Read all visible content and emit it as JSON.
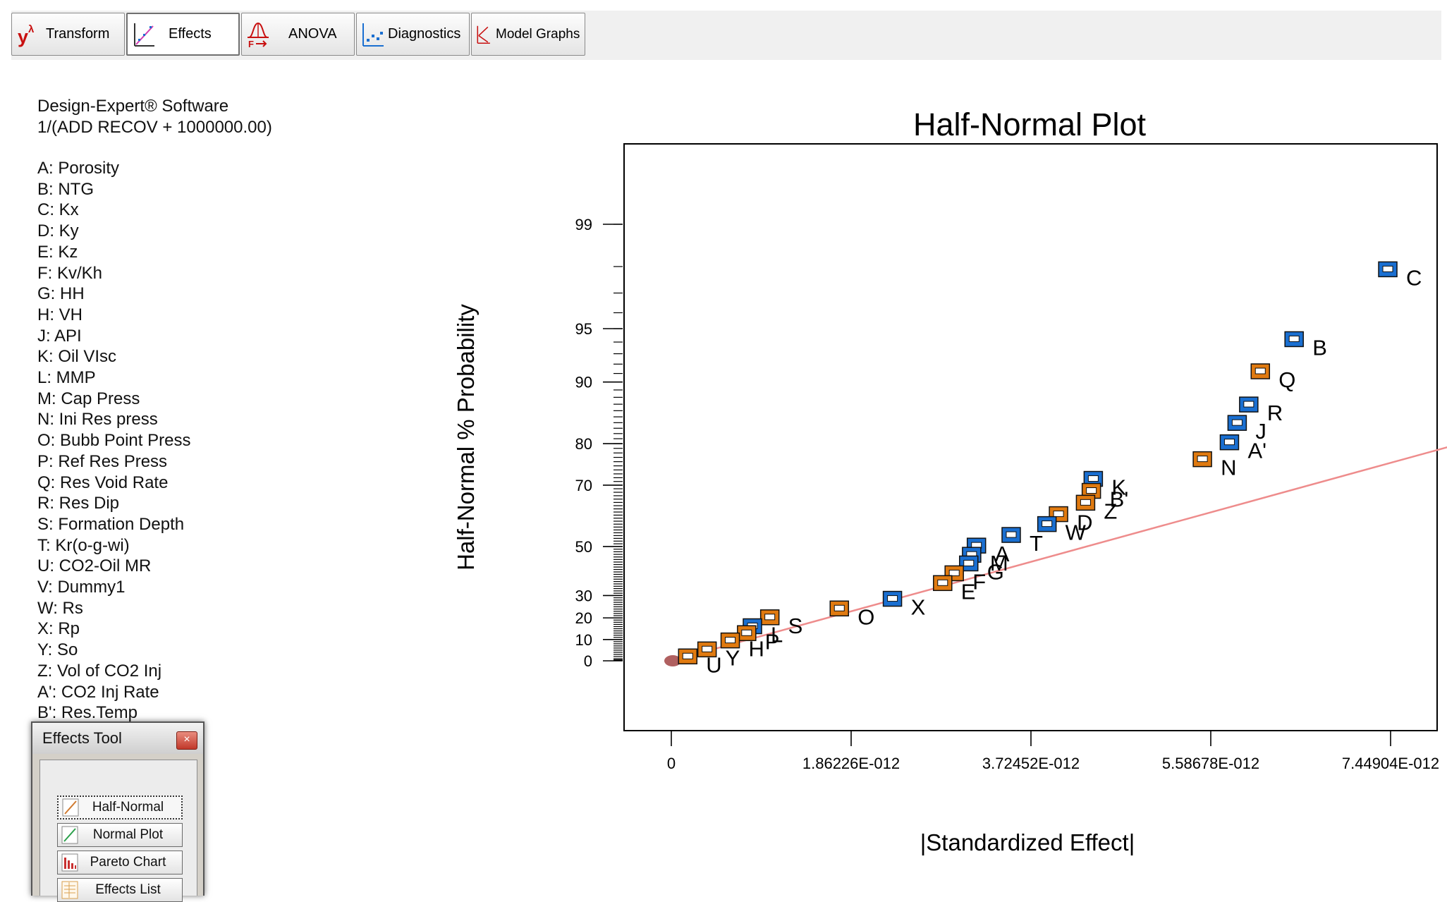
{
  "toolbar": {
    "buttons": [
      {
        "label": "Transform",
        "icon": "y-lambda-icon"
      },
      {
        "label": "Effects",
        "icon": "effects-scatter-icon"
      },
      {
        "label": "ANOVA",
        "icon": "anova-f-icon"
      },
      {
        "label": "Diagnostics",
        "icon": "diagnostics-scatter-icon"
      },
      {
        "label": "Model Graphs",
        "icon": "model-graphs-icon"
      }
    ],
    "transform_glyph": "y",
    "transform_sup": "λ",
    "anova_sub": "F",
    "active": "Effects"
  },
  "info": {
    "software": "Design-Expert® Software",
    "response": "1/(ADD RECOV + 1000000.00)"
  },
  "factors": [
    "A: Porosity",
    "B: NTG",
    "C: Kx",
    "D: Ky",
    "E: Kz",
    "F: Kv/Kh",
    "G: HH",
    "H: VH",
    "J: API",
    "K: Oil VIsc",
    "L: MMP",
    "M: Cap Press",
    "N: Ini Res press",
    "O: Bubb Point Press",
    "P: Ref Res Press",
    "Q: Res Void Rate",
    "R: Res Dip",
    "S: Formation Depth",
    "T: Kr(o-g-wi)",
    "U: CO2-Oil MR",
    "V: Dummy1",
    "W: Rs",
    "X: Rp",
    "Y: So",
    "Z: Vol of CO2 Inj",
    "A': CO2 Inj Rate",
    "B': Res.Temp"
  ],
  "effects_tool": {
    "title": "Effects Tool",
    "close_glyph": "×",
    "buttons": [
      {
        "label": "Half-Normal",
        "icon": "half-normal-icon"
      },
      {
        "label": "Normal Plot",
        "icon": "normal-plot-icon"
      },
      {
        "label": "Pareto Chart",
        "icon": "pareto-chart-icon"
      },
      {
        "label": "Effects List",
        "icon": "effects-list-icon"
      }
    ],
    "active": "Half-Normal"
  },
  "colors": {
    "positive": "#1a6fd1",
    "negative": "#e07a10",
    "fit_line": "#ee8c8c",
    "error_marker": "#b06060"
  },
  "chart_data": {
    "type": "scatter",
    "title": "Half-Normal Plot",
    "xlabel": "|Standardized Effect|",
    "ylabel": "Half-Normal % Probability",
    "xlim": [
      0,
      8.1e-12
    ],
    "ylim_labels": "probability scale",
    "x_ticks": [
      {
        "value": 0,
        "label": "0"
      },
      {
        "value": 1.86226e-12,
        "label": "1.86226E-012"
      },
      {
        "value": 3.72452e-12,
        "label": "3.72452E-012"
      },
      {
        "value": 5.58678e-12,
        "label": "5.58678E-012"
      },
      {
        "value": 7.44904e-12,
        "label": "7.44904E-012"
      }
    ],
    "y_ticks": [
      {
        "value": 0,
        "label": "0"
      },
      {
        "value": 10,
        "label": "10"
      },
      {
        "value": 20,
        "label": "20"
      },
      {
        "value": 30,
        "label": "30"
      },
      {
        "value": 50,
        "label": "50"
      },
      {
        "value": 70,
        "label": "70"
      },
      {
        "value": 80,
        "label": "80"
      },
      {
        "value": 90,
        "label": "90"
      },
      {
        "value": 95,
        "label": "95"
      },
      {
        "value": 99,
        "label": "99"
      }
    ],
    "fit_line": {
      "x": [
        0,
        8.1e-12
      ],
      "p": [
        0,
        79.6
      ]
    },
    "error_point": {
      "x": 0,
      "p": 0
    },
    "points": [
      {
        "label": "C",
        "x": 7.42e-12,
        "p": 97.9,
        "sign": "positive"
      },
      {
        "label": "B",
        "x": 6.45e-12,
        "p": 94.2,
        "sign": "positive"
      },
      {
        "label": "Q",
        "x": 6.1e-12,
        "p": 91.2,
        "sign": "negative"
      },
      {
        "label": "R",
        "x": 5.98e-12,
        "p": 86.9,
        "sign": "positive"
      },
      {
        "label": "J",
        "x": 5.86e-12,
        "p": 83.9,
        "sign": "positive"
      },
      {
        "label": "A'",
        "x": 5.78e-12,
        "p": 80.2,
        "sign": "positive"
      },
      {
        "label": "N",
        "x": 5.5e-12,
        "p": 76.5,
        "sign": "negative"
      },
      {
        "label": "K",
        "x": 4.37e-12,
        "p": 71.6,
        "sign": "positive"
      },
      {
        "label": "B'",
        "x": 4.35e-12,
        "p": 68.3,
        "sign": "negative"
      },
      {
        "label": "Z",
        "x": 4.29e-12,
        "p": 64.8,
        "sign": "negative"
      },
      {
        "label": "D",
        "x": 4.01e-12,
        "p": 61.2,
        "sign": "negative"
      },
      {
        "label": "W",
        "x": 3.89e-12,
        "p": 57.9,
        "sign": "positive"
      },
      {
        "label": "T",
        "x": 3.52e-12,
        "p": 54.1,
        "sign": "positive"
      },
      {
        "label": "A",
        "x": 3.16e-12,
        "p": 50.2,
        "sign": "positive"
      },
      {
        "label": "M",
        "x": 3.11e-12,
        "p": 46.7,
        "sign": "positive"
      },
      {
        "label": "G",
        "x": 3.08e-12,
        "p": 43.3,
        "sign": "positive"
      },
      {
        "label": "F",
        "x": 2.93e-12,
        "p": 39.3,
        "sign": "negative"
      },
      {
        "label": "E",
        "x": 2.81e-12,
        "p": 35.2,
        "sign": "negative"
      },
      {
        "label": "X",
        "x": 2.29e-12,
        "p": 28.4,
        "sign": "positive"
      },
      {
        "label": "O",
        "x": 1.74e-12,
        "p": 24.1,
        "sign": "negative"
      },
      {
        "label": "S",
        "x": 1.02e-12,
        "p": 20.1,
        "sign": "negative"
      },
      {
        "label": "L",
        "x": 8.4e-13,
        "p": 16.0,
        "sign": "positive"
      },
      {
        "label": "P",
        "x": 7.8e-13,
        "p": 12.8,
        "sign": "negative"
      },
      {
        "label": "H",
        "x": 6.1e-13,
        "p": 9.4,
        "sign": "negative"
      },
      {
        "label": "Y",
        "x": 3.7e-13,
        "p": 5.2,
        "sign": "negative"
      },
      {
        "label": "U",
        "x": 1.7e-13,
        "p": 1.9,
        "sign": "negative"
      }
    ]
  }
}
